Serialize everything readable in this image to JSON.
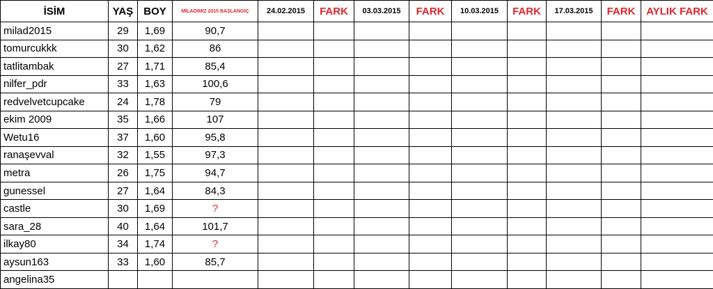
{
  "table": {
    "header": [
      "İSİM",
      "YAŞ",
      "BOY",
      "MİLADIMIZ 2015 BAŞLANGIÇ",
      "24.02.2015",
      "FARK",
      "03.03.2015",
      "FARK",
      "10.03.2015",
      "FARK",
      "17.03.2015",
      "FARK",
      "AYLIK FARK"
    ],
    "rows": [
      [
        "milad2015",
        "29",
        "1,69",
        "90,7"
      ],
      [
        "tomurcukkk",
        "30",
        "1,62",
        "86"
      ],
      [
        "tatlitambak",
        "27",
        "1,71",
        "85,4"
      ],
      [
        "nilfer_pdr",
        "33",
        "1,63",
        "100,6"
      ],
      [
        "redvelvetcupcake",
        "24",
        "1,78",
        "79"
      ],
      [
        "ekim 2009",
        "35",
        "1,66",
        "107"
      ],
      [
        "Wetu16",
        "37",
        "1,60",
        "95,8"
      ],
      [
        "ranaşevval",
        "32",
        "1,55",
        "97,3"
      ],
      [
        "metra",
        "26",
        "1,75",
        "94,7"
      ],
      [
        "gunessel",
        "27",
        "1,64",
        "84,3"
      ],
      [
        "castle",
        "30",
        "1,69",
        "?"
      ],
      [
        "sara_28",
        "40",
        "1,64",
        "101,7"
      ],
      [
        "ilkay80",
        "34",
        "1,74",
        "?"
      ],
      [
        "aysun163",
        "33",
        "1,60",
        "85,7"
      ],
      [
        "angelina35"
      ]
    ]
  }
}
